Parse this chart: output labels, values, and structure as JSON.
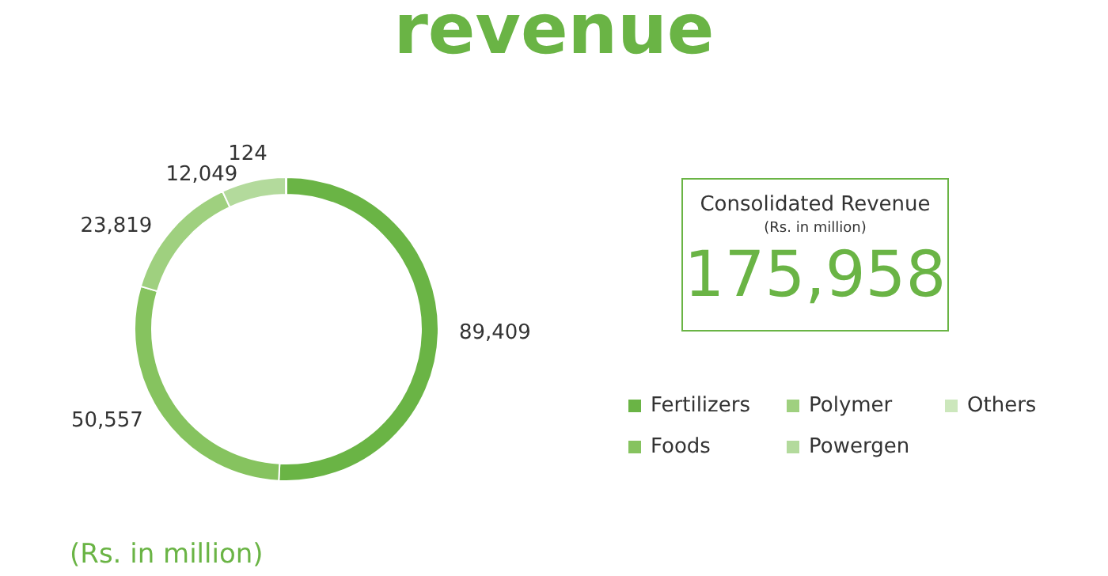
{
  "chart_data": {
    "type": "donut",
    "title": "revenue",
    "categories": [
      "Fertilizers",
      "Foods",
      "Polymer",
      "Powergen",
      "Others"
    ],
    "values": [
      89409,
      50557,
      23819,
      12049,
      124
    ],
    "value_labels": [
      "89,409",
      "50,557",
      "23,819",
      "12,049",
      "124"
    ],
    "colors": [
      "#6ab445",
      "#86c35f",
      "#9fd07f",
      "#b3da9c",
      "#cce7bc"
    ],
    "legend": "right",
    "annotations": [
      "Consolidated Revenue",
      "(Rs. in million)",
      "175,958",
      "(Rs. in million)"
    ]
  }
}
